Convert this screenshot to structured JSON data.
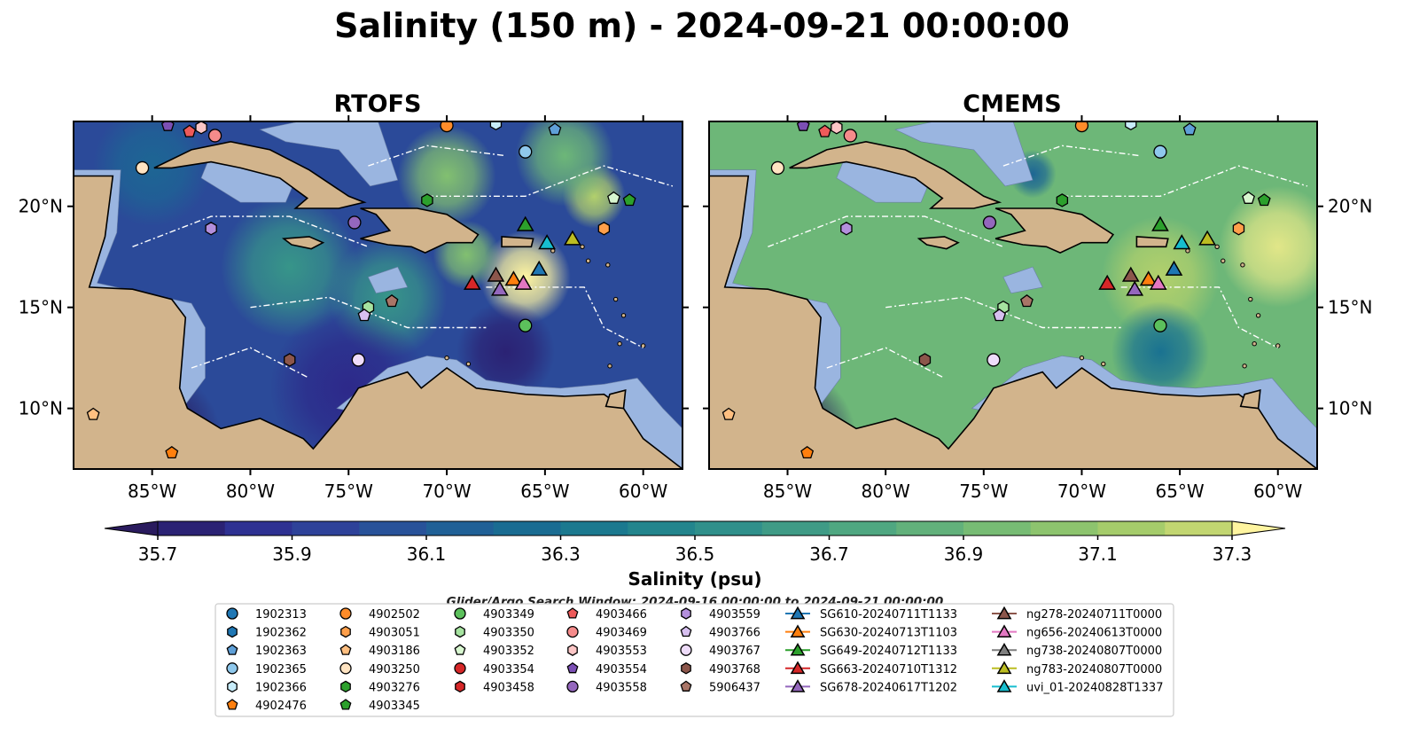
{
  "title": "Salinity (150 m) - 2024-09-21 00:00:00",
  "panels": [
    {
      "id": "rtofs",
      "title": "RTOFS",
      "left_axis_labels": true,
      "right_axis_labels": false
    },
    {
      "id": "cmems",
      "title": "CMEMS",
      "left_axis_labels": false,
      "right_axis_labels": true
    }
  ],
  "search_window": "Glider/Argo Search Window: 2024-09-16 00:00:00 to 2024-09-21 00:00:00",
  "colors": {
    "land": "#d2b48c",
    "shelf": "#9ab5e0",
    "colormap": [
      "#2a1b5e",
      "#2d2a8e",
      "#2f3d98",
      "#2a4f9a",
      "#215f96",
      "#1a6c92",
      "#1b7a8f",
      "#25878c",
      "#34938a",
      "#45a084",
      "#58ac7e",
      "#6fb877",
      "#86c26f",
      "#a0ca6b",
      "#bcd36c",
      "#fff5a0"
    ]
  },
  "chart_data": {
    "type": "heatmap",
    "variable": "Salinity (psu)",
    "depth_label": "150 m",
    "colorbar": {
      "label": "Salinity (psu)",
      "ticks": [
        35.7,
        35.9,
        36.1,
        36.3,
        36.5,
        36.7,
        36.9,
        37.1,
        37.3
      ],
      "tick_labels": [
        "35.7",
        "35.9",
        "36.1",
        "36.3",
        "36.5",
        "36.7",
        "36.9",
        "37.1",
        "37.3"
      ],
      "range": [
        35.7,
        37.35
      ],
      "extend": "both"
    },
    "map": {
      "lon_range": [
        -89,
        -58
      ],
      "lat_range": [
        7,
        24.2
      ],
      "x_ticks": [
        -85,
        -80,
        -75,
        -70,
        -65,
        -60
      ],
      "x_tick_labels": [
        "85°W",
        "80°W",
        "75°W",
        "70°W",
        "65°W",
        "60°W"
      ],
      "y_ticks": [
        10,
        15,
        20
      ],
      "y_tick_labels": [
        "10°N",
        "15°N",
        "20°N"
      ]
    },
    "fields": {
      "rtofs": {
        "background": 36.0,
        "anomalies": [
          {
            "lon": -66,
            "lat": 16.5,
            "value": 37.35,
            "r": 2.3
          },
          {
            "lon": -69,
            "lat": 17.6,
            "value": 37.0,
            "r": 1.7
          },
          {
            "lon": -62.5,
            "lat": 20.5,
            "value": 37.2,
            "r": 1.6
          },
          {
            "lon": -70,
            "lat": 21.5,
            "value": 37.0,
            "r": 2.5
          },
          {
            "lon": -64,
            "lat": 22.5,
            "value": 36.9,
            "r": 2.5
          },
          {
            "lon": -78,
            "lat": 17.0,
            "value": 36.6,
            "r": 3.5
          },
          {
            "lon": -73,
            "lat": 15.5,
            "value": 36.6,
            "r": 3.0
          },
          {
            "lon": -85,
            "lat": 22.0,
            "value": 36.2,
            "r": 3.0
          },
          {
            "lon": -75,
            "lat": 11.0,
            "value": 35.8,
            "r": 4.0
          },
          {
            "lon": -67,
            "lat": 12.8,
            "value": 35.75,
            "r": 2.5
          },
          {
            "lon": -85,
            "lat": 8.5,
            "value": 35.7,
            "r": 3.5
          }
        ]
      },
      "cmems": {
        "background": 36.9,
        "anomalies": [
          {
            "lon": -66,
            "lat": 16.5,
            "value": 37.2,
            "r": 3.0
          },
          {
            "lon": -60,
            "lat": 18.0,
            "value": 37.3,
            "r": 3.0
          },
          {
            "lon": -66,
            "lat": 12.8,
            "value": 36.3,
            "r": 2.5
          },
          {
            "lon": -72.5,
            "lat": 21.6,
            "value": 36.2,
            "r": 1.2
          },
          {
            "lon": -85,
            "lat": 8.5,
            "value": 35.7,
            "r": 3.5
          }
        ]
      }
    },
    "floats": [
      {
        "id": "1902313",
        "marker": "circle",
        "color": "#1f77b4",
        "lon": -88,
        "lat": 27
      },
      {
        "id": "1902362",
        "marker": "hexagon",
        "color": "#1f77b4",
        "lon": -88,
        "lat": 27
      },
      {
        "id": "1902363",
        "marker": "pentagon",
        "color": "#5fa0d8",
        "lon": -64.5,
        "lat": 23.8
      },
      {
        "id": "1902365",
        "marker": "circle",
        "color": "#8fc8ec",
        "lon": -66,
        "lat": 22.7
      },
      {
        "id": "1902366",
        "marker": "hexagon",
        "color": "#c7ecfa",
        "lon": -67.5,
        "lat": 24.1
      },
      {
        "id": "4902476",
        "marker": "pentagon",
        "color": "#ff7f0e",
        "lon": -84,
        "lat": 7.8
      },
      {
        "id": "4902502",
        "marker": "circle",
        "color": "#ff8c2a",
        "lon": -70,
        "lat": 24.0
      },
      {
        "id": "4903051",
        "marker": "hexagon",
        "color": "#ff9f4a",
        "lon": -62,
        "lat": 18.9
      },
      {
        "id": "4903186",
        "marker": "pentagon",
        "color": "#ffbf80",
        "lon": -88,
        "lat": 9.7
      },
      {
        "id": "4903250",
        "marker": "circle",
        "color": "#ffe4c2",
        "lon": -85.5,
        "lat": 21.9
      },
      {
        "id": "4903276",
        "marker": "hexagon",
        "color": "#2ca02c",
        "lon": -71,
        "lat": 20.3
      },
      {
        "id": "4903345",
        "marker": "pentagon",
        "color": "#2ca02c",
        "lon": -60.7,
        "lat": 20.3
      },
      {
        "id": "4903349",
        "marker": "circle",
        "color": "#5cc05c",
        "lon": -66,
        "lat": 14.1
      },
      {
        "id": "4903350",
        "marker": "hexagon",
        "color": "#a6e3a0",
        "lon": -74,
        "lat": 15.0
      },
      {
        "id": "4903352",
        "marker": "pentagon",
        "color": "#d8f7d0",
        "lon": -61.5,
        "lat": 20.4
      },
      {
        "id": "4903354",
        "marker": "circle",
        "color": "#d62728",
        "lon": -88,
        "lat": 27
      },
      {
        "id": "4903458",
        "marker": "hexagon",
        "color": "#d62728",
        "lon": -88,
        "lat": 27
      },
      {
        "id": "4903466",
        "marker": "pentagon",
        "color": "#ee5a5a",
        "lon": -83.1,
        "lat": 23.7
      },
      {
        "id": "4903469",
        "marker": "circle",
        "color": "#f58b8b",
        "lon": -81.8,
        "lat": 23.5
      },
      {
        "id": "4903553",
        "marker": "hexagon",
        "color": "#fcc6c6",
        "lon": -82.5,
        "lat": 23.9
      },
      {
        "id": "4903554",
        "marker": "pentagon",
        "color": "#7b4fb4",
        "lon": -84.2,
        "lat": 24.0
      },
      {
        "id": "4903558",
        "marker": "circle",
        "color": "#9467bd",
        "lon": -74.7,
        "lat": 19.2
      },
      {
        "id": "4903559",
        "marker": "hexagon",
        "color": "#b38fdc",
        "lon": -82,
        "lat": 18.9
      },
      {
        "id": "4903766",
        "marker": "pentagon",
        "color": "#d7c0f0",
        "lon": -74.2,
        "lat": 14.6
      },
      {
        "id": "4903767",
        "marker": "circle",
        "color": "#eedcfa",
        "lon": -74.5,
        "lat": 12.4
      },
      {
        "id": "4903768",
        "marker": "hexagon",
        "color": "#8c564b",
        "lon": -78,
        "lat": 12.4
      },
      {
        "id": "5906437",
        "marker": "pentagon",
        "color": "#a97567",
        "lon": -72.8,
        "lat": 15.3
      }
    ],
    "gliders": [
      {
        "id": "SG610-20240711T1133",
        "color": "#1f77b4",
        "lon": -65.3,
        "lat": 16.9
      },
      {
        "id": "SG630-20240713T1103",
        "color": "#ff7f0e",
        "lon": -66.6,
        "lat": 16.4
      },
      {
        "id": "SG649-20240712T1133",
        "color": "#2ca02c",
        "lon": -66,
        "lat": 19.1
      },
      {
        "id": "SG663-20240710T1312",
        "color": "#d62728",
        "lon": -68.7,
        "lat": 16.2
      },
      {
        "id": "SG678-20240617T1202",
        "color": "#9467bd",
        "lon": -67.3,
        "lat": 15.9
      },
      {
        "id": "ng278-20240711T0000",
        "color": "#8c564b",
        "lon": -67.5,
        "lat": 16.6
      },
      {
        "id": "ng656-20240613T0000",
        "color": "#e377c2",
        "lon": -66.1,
        "lat": 16.2
      },
      {
        "id": "ng738-20240807T0000",
        "color": "#7f7f7f",
        "lon": -88,
        "lat": 27
      },
      {
        "id": "ng783-20240807T0000",
        "color": "#bcbd22",
        "lon": -63.6,
        "lat": 18.4
      },
      {
        "id": "uvi_01-20240828T1337",
        "color": "#17becf",
        "lon": -64.9,
        "lat": 18.2
      }
    ]
  }
}
